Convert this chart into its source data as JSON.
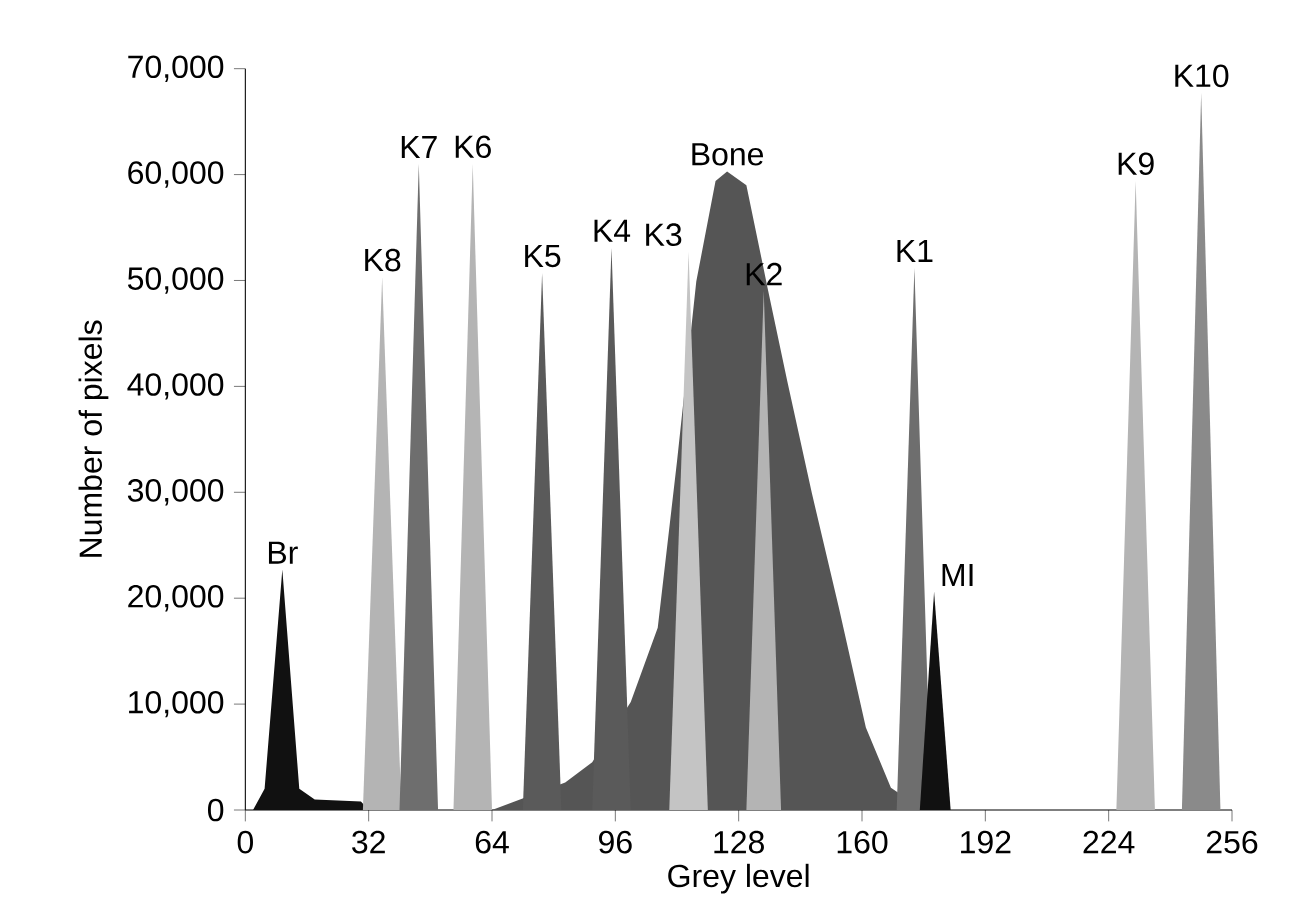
{
  "chart_data": {
    "type": "area",
    "xlabel": "Grey level",
    "ylabel": "Number of pixels",
    "xlim": [
      0,
      256
    ],
    "xticks": [
      0,
      32,
      64,
      96,
      128,
      160,
      192,
      224,
      256
    ],
    "ylim": [
      0,
      70000
    ],
    "yticks": [
      {
        "value": 0,
        "label": "0"
      },
      {
        "value": 10000,
        "label": "10,000"
      },
      {
        "value": 20000,
        "label": "20,000"
      },
      {
        "value": 30000,
        "label": "30,000"
      },
      {
        "value": 40000,
        "label": "40,000"
      },
      {
        "value": 50000,
        "label": "50,000"
      },
      {
        "value": 60000,
        "label": "60,000"
      },
      {
        "value": 70000,
        "label": "70,000"
      }
    ],
    "series": [
      {
        "color": "#555555",
        "x": [
          64,
          83,
          90,
          96,
          100,
          107,
          112,
          117,
          122,
          125,
          130,
          135.5,
          140.6,
          147,
          154,
          161,
          167.5,
          173.6,
          176
        ],
        "values": [
          0,
          2600,
          4500,
          null,
          10200,
          17200,
          32900,
          49900,
          59400,
          60300,
          59000,
          49300,
          40500,
          29900,
          19100,
          7800,
          2100,
          null,
          0
        ]
      },
      {
        "color": "#111111",
        "x": [
          2,
          5,
          9.6,
          14,
          18,
          30,
          32
        ],
        "values": [
          0,
          2000,
          22700,
          2000,
          1000,
          800,
          0
        ]
      },
      {
        "color": "#b4b4b4",
        "x": [
          30.5,
          35.5,
          40.5
        ],
        "values": [
          0,
          50300,
          0
        ]
      },
      {
        "color": "#6e6e6e",
        "x": [
          40,
          45,
          50
        ],
        "values": [
          0,
          61000,
          0
        ]
      },
      {
        "color": "#b4b4b4",
        "x": [
          54,
          59,
          64
        ],
        "values": [
          0,
          61000,
          0
        ]
      },
      {
        "color": "#5a5a5a",
        "x": [
          72,
          77,
          82
        ],
        "values": [
          0,
          50700,
          0
        ]
      },
      {
        "color": "#5a5a5a",
        "x": [
          90,
          95,
          100
        ],
        "values": [
          0,
          53100,
          0
        ]
      },
      {
        "color": "#c4c4c4",
        "x": [
          110,
          115,
          120
        ],
        "values": [
          0,
          52700,
          0
        ]
      },
      {
        "color": "#b4b4b4",
        "x": [
          130,
          134.5,
          139
        ],
        "values": [
          0,
          49000,
          0
        ]
      },
      {
        "color": "#6e6e6e",
        "x": [
          169,
          173.6,
          178
        ],
        "values": [
          0,
          51200,
          0
        ]
      },
      {
        "color": "#111111",
        "x": [
          175,
          178.7,
          183
        ],
        "values": [
          0,
          20600,
          0
        ]
      },
      {
        "color": "#b4b4b4",
        "x": [
          226,
          231,
          236
        ],
        "values": [
          0,
          59400,
          0
        ]
      },
      {
        "color": "#8a8a8a",
        "x": [
          243,
          248,
          253
        ],
        "values": [
          0,
          67700,
          0
        ]
      }
    ],
    "annotations": [
      {
        "text": "Br",
        "x": 9.6,
        "y": 22700
      },
      {
        "text": "K8",
        "x": 35.5,
        "y": 50300
      },
      {
        "text": "K7",
        "x": 45,
        "y": 61000
      },
      {
        "text": "K6",
        "x": 59,
        "y": 61000
      },
      {
        "text": "K5",
        "x": 77,
        "y": 50700
      },
      {
        "text": "K4",
        "x": 95,
        "y": 53100
      },
      {
        "text": "K3",
        "x": 115,
        "y": 52700
      },
      {
        "text": "Bone",
        "x": 125,
        "y": 60300
      },
      {
        "text": "K2",
        "x": 134.5,
        "y": 49000
      },
      {
        "text": "K1",
        "x": 173.6,
        "y": 51200
      },
      {
        "text": "MI",
        "x": 178.7,
        "y": 20600
      },
      {
        "text": "K9",
        "x": 231,
        "y": 59400
      },
      {
        "text": "K10",
        "x": 248,
        "y": 67700
      }
    ]
  }
}
